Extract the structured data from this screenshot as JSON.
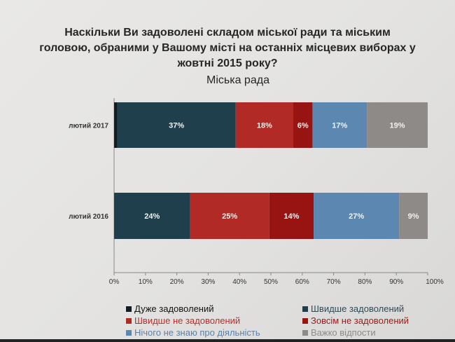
{
  "chart_data": {
    "type": "bar",
    "orientation": "horizontal",
    "stacked": "percent",
    "title_lines": [
      "Наскільки Ви задоволені складом міської ради та міським",
      "головою, обраними у Вашому місті на останніх місцевих виборах у",
      "жовтні 2015 року?"
    ],
    "subtitle": "Міська рада",
    "categories": [
      "лютий 2017",
      "лютий 2016"
    ],
    "xlim": [
      0,
      100
    ],
    "x_ticks": [
      "0%",
      "10%",
      "20%",
      "30%",
      "40%",
      "50%",
      "60%",
      "70%",
      "80%",
      "90%",
      "100%"
    ],
    "legend_placement": "bottom",
    "series": [
      {
        "name": "Дуже задоволений",
        "color": "#121c22",
        "text_color": "#111111",
        "values": [
          1,
          0
        ],
        "labels": [
          "1%",
          ""
        ]
      },
      {
        "name": "Швидше задоволений",
        "color": "#1f3f4c",
        "text_color": "#2f4a55",
        "values": [
          37,
          24
        ],
        "labels": [
          "37%",
          "24%"
        ]
      },
      {
        "name": "Швидше не задоволений",
        "color": "#b22a26",
        "text_color": "#b3302b",
        "values": [
          18,
          25
        ],
        "labels": [
          "18%",
          "25%"
        ]
      },
      {
        "name": "Зовсім не задоволений",
        "color": "#981412",
        "text_color": "#9a1a17",
        "values": [
          6,
          14
        ],
        "labels": [
          "6%",
          "14%"
        ]
      },
      {
        "name": "Нічого не знаю про діяльність",
        "color": "#5b87b1",
        "text_color": "#5b80a8",
        "values": [
          17,
          27
        ],
        "labels": [
          "17%",
          "27%"
        ]
      },
      {
        "name": "Важко відпости",
        "color": "#8d8a87",
        "text_color": "#8d8a87",
        "values": [
          19,
          9
        ],
        "labels": [
          "19%",
          "9%"
        ]
      }
    ]
  }
}
